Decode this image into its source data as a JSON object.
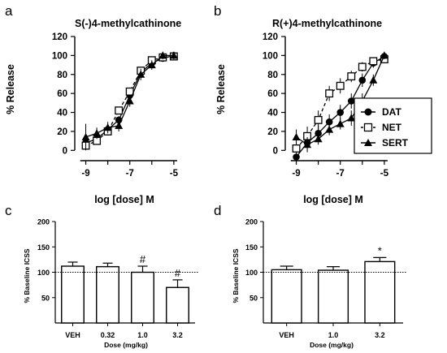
{
  "colors": {
    "ink": "#000000",
    "bar_fill": "#ffffff"
  },
  "chart_data": [
    {
      "panel": "a",
      "type": "line",
      "title": "S(-)4-methylcathinone",
      "xlabel": "log [dose] M",
      "ylabel": "% Release",
      "xlim": [
        -9.5,
        -4.7
      ],
      "ylim": [
        -10,
        120
      ],
      "x_ticks": [
        -9,
        -7,
        -5
      ],
      "y_ticks": [
        0,
        20,
        40,
        60,
        80,
        100,
        120
      ],
      "series": [
        {
          "name": "DAT",
          "marker": "circle-filled",
          "x": [
            -9,
            -8.5,
            -8,
            -7.5,
            -7,
            -6.5,
            -6,
            -5.5,
            -5
          ],
          "y": [
            8,
            12,
            22,
            32,
            58,
            82,
            92,
            97,
            100
          ],
          "err": [
            4,
            4,
            4,
            4,
            4,
            5,
            4,
            3,
            3
          ]
        },
        {
          "name": "NET",
          "marker": "square-open",
          "x": [
            -9,
            -8.5,
            -8,
            -7.5,
            -7,
            -6.5,
            -6,
            -5.5,
            -5
          ],
          "y": [
            5,
            10,
            20,
            42,
            62,
            84,
            95,
            98,
            99
          ],
          "err": [
            3,
            3,
            4,
            4,
            4,
            4,
            3,
            3,
            3
          ]
        },
        {
          "name": "SERT",
          "marker": "triangle-filled",
          "x": [
            -9,
            -8.5,
            -8,
            -7.5,
            -7,
            -6.5,
            -6,
            -5.5,
            -5
          ],
          "y": [
            14,
            18,
            24,
            26,
            52,
            80,
            90,
            100,
            100
          ],
          "err": [
            14,
            6,
            6,
            6,
            6,
            6,
            5,
            4,
            4
          ]
        }
      ]
    },
    {
      "panel": "b",
      "type": "line",
      "title": "R(+)4-methylcathinone",
      "xlabel": "log [dose] M",
      "ylabel": "% Release",
      "xlim": [
        -9.5,
        -4.7
      ],
      "ylim": [
        -10,
        120
      ],
      "x_ticks": [
        -9,
        -7,
        -5
      ],
      "y_ticks": [
        0,
        20,
        40,
        60,
        80,
        100,
        120
      ],
      "legend": {
        "position": "right",
        "entries": [
          "DAT",
          "NET",
          "SERT"
        ]
      },
      "series": [
        {
          "name": "DAT",
          "marker": "circle-filled",
          "x": [
            -9,
            -8.5,
            -8,
            -7.5,
            -7,
            -6.5,
            -6,
            -5.5,
            -5
          ],
          "y": [
            -7,
            8,
            18,
            30,
            40,
            52,
            74,
            92,
            99
          ],
          "err": [
            3,
            6,
            8,
            8,
            8,
            8,
            7,
            5,
            4
          ]
        },
        {
          "name": "NET",
          "marker": "square-open",
          "x": [
            -9,
            -8.5,
            -8,
            -7.5,
            -7,
            -6.5,
            -6,
            -5.5,
            -5
          ],
          "y": [
            2,
            15,
            32,
            60,
            68,
            78,
            88,
            94,
            96
          ],
          "err": [
            6,
            10,
            10,
            8,
            8,
            6,
            5,
            4,
            4
          ]
        },
        {
          "name": "SERT",
          "marker": "triangle-filled",
          "x": [
            -9,
            -8.5,
            -8,
            -7.5,
            -7,
            -6.5,
            -6,
            -5.5,
            -5
          ],
          "y": [
            14,
            6,
            12,
            22,
            28,
            34,
            52,
            74,
            100
          ],
          "err": [
            8,
            8,
            6,
            6,
            6,
            8,
            8,
            6,
            4
          ]
        }
      ]
    },
    {
      "panel": "c",
      "type": "bar",
      "xlabel": "Dose (mg/kg)",
      "ylabel": "% Baseline ICSS",
      "ylim": [
        0,
        200
      ],
      "y_ticks": [
        50,
        100,
        150,
        200
      ],
      "reference_line": 100,
      "categories": [
        "VEH",
        "0.32",
        "1.0",
        "3.2"
      ],
      "values": [
        112,
        111,
        100,
        70
      ],
      "err": [
        8,
        7,
        12,
        15
      ],
      "annotations": [
        "",
        "",
        "#",
        "#"
      ]
    },
    {
      "panel": "d",
      "type": "bar",
      "xlabel": "Dose (mg/kg)",
      "ylabel": "% Baseline ICSS",
      "ylim": [
        0,
        200
      ],
      "y_ticks": [
        50,
        100,
        150,
        200
      ],
      "reference_line": 100,
      "categories": [
        "VEH",
        "1.0",
        "3.2"
      ],
      "values": [
        105,
        104,
        121
      ],
      "err": [
        7,
        7,
        8
      ],
      "annotations": [
        "",
        "",
        "*"
      ]
    }
  ]
}
